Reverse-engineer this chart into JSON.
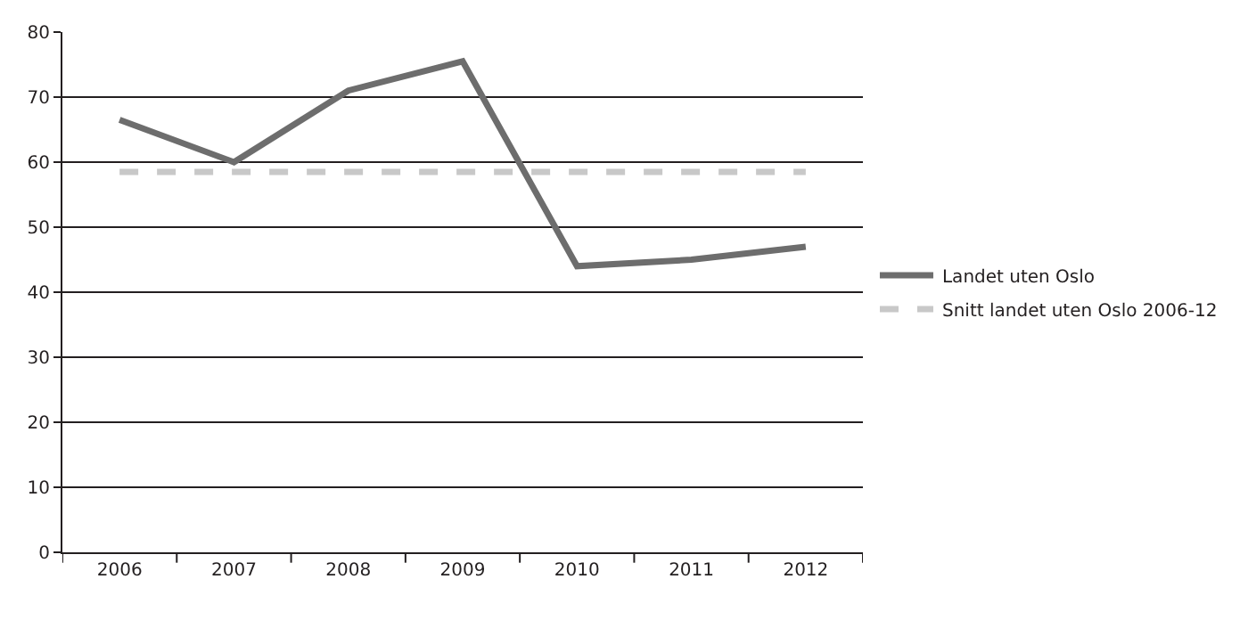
{
  "chart_data": {
    "type": "line",
    "categories": [
      "2006",
      "2007",
      "2008",
      "2009",
      "2010",
      "2011",
      "2012"
    ],
    "series": [
      {
        "name": "Landet uten Oslo",
        "color": "#6d6d6d",
        "values": [
          66.5,
          60,
          71,
          75.5,
          44,
          45,
          47
        ],
        "line_style": "solid"
      },
      {
        "name": "Snitt landet uten Oslo 2006-12",
        "color": "#c8c8c8",
        "values": [
          58.5,
          58.5,
          58.5,
          58.5,
          58.5,
          58.5,
          58.5
        ],
        "line_style": "dashed"
      }
    ],
    "ylim": [
      0,
      80
    ],
    "yticks": [
      0,
      10,
      20,
      30,
      40,
      50,
      60,
      70,
      80
    ],
    "grid": "y",
    "legend": "right",
    "marker": "none"
  }
}
